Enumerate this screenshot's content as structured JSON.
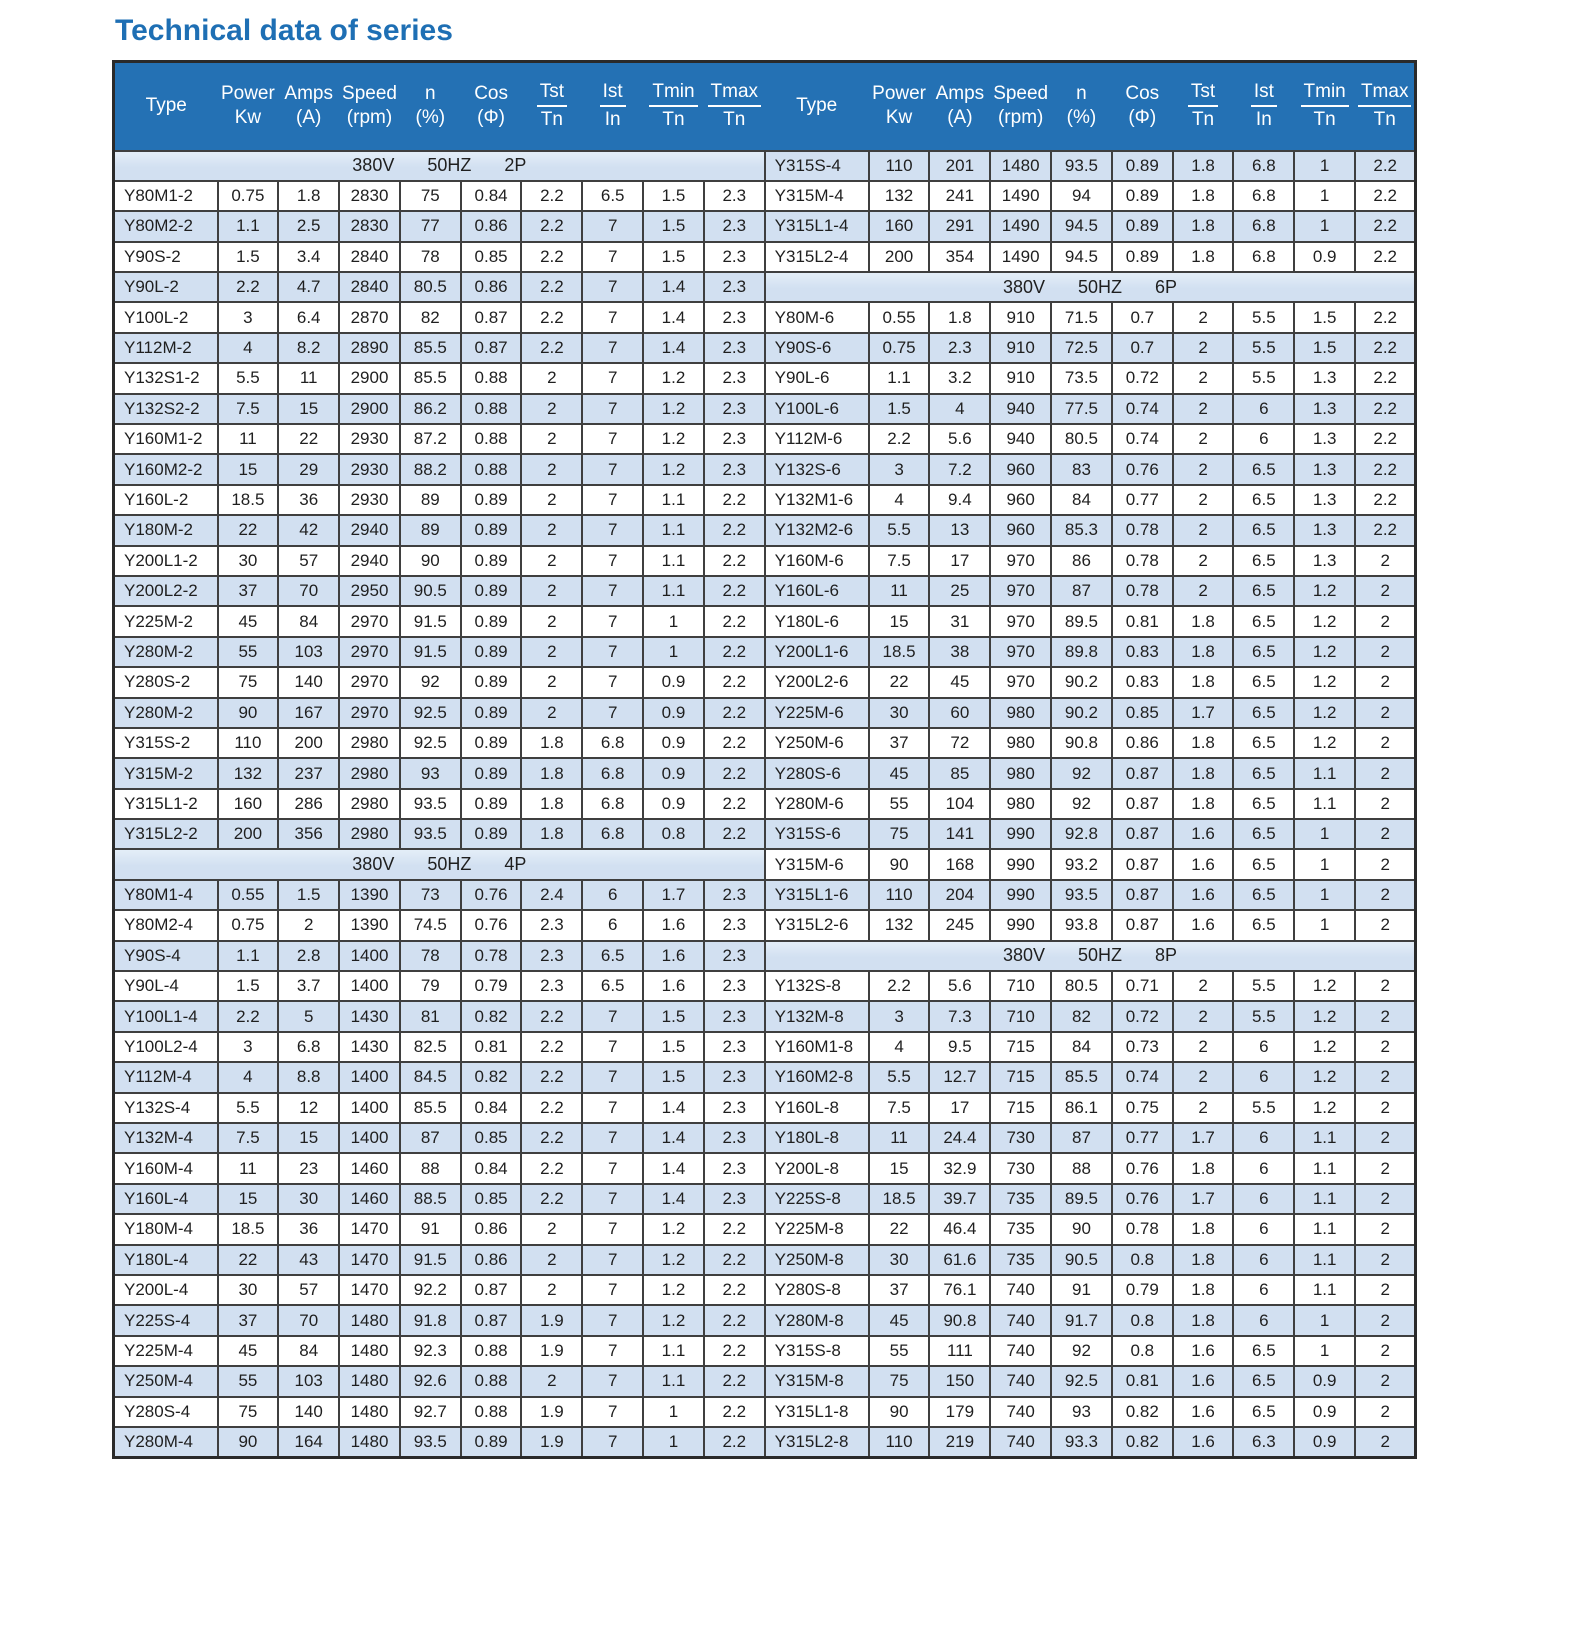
{
  "title": "Technical data of series",
  "colors": {
    "header_bg": "#2471b4",
    "header_text": "#ffffff",
    "row_highlight": "#d2e0f1",
    "title_color": "#1e6fb4",
    "border_color": "#3f3f3f"
  },
  "columns": [
    {
      "type": "single",
      "label": "Type"
    },
    {
      "type": "stacked",
      "top": "Power",
      "bottom": "Kw"
    },
    {
      "type": "stacked",
      "top": "Amps",
      "bottom": "(A)"
    },
    {
      "type": "stacked",
      "top": "Speed",
      "bottom": "(rpm)"
    },
    {
      "type": "stacked",
      "top": "n",
      "bottom": "(%)"
    },
    {
      "type": "stacked",
      "top": "Cos",
      "bottom": "(Φ)"
    },
    {
      "type": "fraction",
      "top": "Tst",
      "bottom": "Tn"
    },
    {
      "type": "fraction",
      "top": "Ist",
      "bottom": "In"
    },
    {
      "type": "fraction",
      "top": "Tmin",
      "bottom": "Tn"
    },
    {
      "type": "fraction",
      "top": "Tmax",
      "bottom": "Tn"
    }
  ],
  "rows_left": [
    {
      "section": "380V 50HZ 2P"
    },
    [
      "Y80M1-2",
      "0.75",
      "1.8",
      "2830",
      "75",
      "0.84",
      "2.2",
      "6.5",
      "1.5",
      "2.3"
    ],
    [
      "Y80M2-2",
      "1.1",
      "2.5",
      "2830",
      "77",
      "0.86",
      "2.2",
      "7",
      "1.5",
      "2.3"
    ],
    [
      "Y90S-2",
      "1.5",
      "3.4",
      "2840",
      "78",
      "0.85",
      "2.2",
      "7",
      "1.5",
      "2.3"
    ],
    [
      "Y90L-2",
      "2.2",
      "4.7",
      "2840",
      "80.5",
      "0.86",
      "2.2",
      "7",
      "1.4",
      "2.3"
    ],
    [
      "Y100L-2",
      "3",
      "6.4",
      "2870",
      "82",
      "0.87",
      "2.2",
      "7",
      "1.4",
      "2.3"
    ],
    [
      "Y112M-2",
      "4",
      "8.2",
      "2890",
      "85.5",
      "0.87",
      "2.2",
      "7",
      "1.4",
      "2.3"
    ],
    [
      "Y132S1-2",
      "5.5",
      "11",
      "2900",
      "85.5",
      "0.88",
      "2",
      "7",
      "1.2",
      "2.3"
    ],
    [
      "Y132S2-2",
      "7.5",
      "15",
      "2900",
      "86.2",
      "0.88",
      "2",
      "7",
      "1.2",
      "2.3"
    ],
    [
      "Y160M1-2",
      "11",
      "22",
      "2930",
      "87.2",
      "0.88",
      "2",
      "7",
      "1.2",
      "2.3"
    ],
    [
      "Y160M2-2",
      "15",
      "29",
      "2930",
      "88.2",
      "0.88",
      "2",
      "7",
      "1.2",
      "2.3"
    ],
    [
      "Y160L-2",
      "18.5",
      "36",
      "2930",
      "89",
      "0.89",
      "2",
      "7",
      "1.1",
      "2.2"
    ],
    [
      "Y180M-2",
      "22",
      "42",
      "2940",
      "89",
      "0.89",
      "2",
      "7",
      "1.1",
      "2.2"
    ],
    [
      "Y200L1-2",
      "30",
      "57",
      "2940",
      "90",
      "0.89",
      "2",
      "7",
      "1.1",
      "2.2"
    ],
    [
      "Y200L2-2",
      "37",
      "70",
      "2950",
      "90.5",
      "0.89",
      "2",
      "7",
      "1.1",
      "2.2"
    ],
    [
      "Y225M-2",
      "45",
      "84",
      "2970",
      "91.5",
      "0.89",
      "2",
      "7",
      "1",
      "2.2"
    ],
    [
      "Y280M-2",
      "55",
      "103",
      "2970",
      "91.5",
      "0.89",
      "2",
      "7",
      "1",
      "2.2"
    ],
    [
      "Y280S-2",
      "75",
      "140",
      "2970",
      "92",
      "0.89",
      "2",
      "7",
      "0.9",
      "2.2"
    ],
    [
      "Y280M-2",
      "90",
      "167",
      "2970",
      "92.5",
      "0.89",
      "2",
      "7",
      "0.9",
      "2.2"
    ],
    [
      "Y315S-2",
      "110",
      "200",
      "2980",
      "92.5",
      "0.89",
      "1.8",
      "6.8",
      "0.9",
      "2.2"
    ],
    [
      "Y315M-2",
      "132",
      "237",
      "2980",
      "93",
      "0.89",
      "1.8",
      "6.8",
      "0.9",
      "2.2"
    ],
    [
      "Y315L1-2",
      "160",
      "286",
      "2980",
      "93.5",
      "0.89",
      "1.8",
      "6.8",
      "0.9",
      "2.2"
    ],
    [
      "Y315L2-2",
      "200",
      "356",
      "2980",
      "93.5",
      "0.89",
      "1.8",
      "6.8",
      "0.8",
      "2.2"
    ],
    {
      "section": "380V 50HZ 4P"
    },
    [
      "Y80M1-4",
      "0.55",
      "1.5",
      "1390",
      "73",
      "0.76",
      "2.4",
      "6",
      "1.7",
      "2.3"
    ],
    [
      "Y80M2-4",
      "0.75",
      "2",
      "1390",
      "74.5",
      "0.76",
      "2.3",
      "6",
      "1.6",
      "2.3"
    ],
    [
      "Y90S-4",
      "1.1",
      "2.8",
      "1400",
      "78",
      "0.78",
      "2.3",
      "6.5",
      "1.6",
      "2.3"
    ],
    [
      "Y90L-4",
      "1.5",
      "3.7",
      "1400",
      "79",
      "0.79",
      "2.3",
      "6.5",
      "1.6",
      "2.3"
    ],
    [
      "Y100L1-4",
      "2.2",
      "5",
      "1430",
      "81",
      "0.82",
      "2.2",
      "7",
      "1.5",
      "2.3"
    ],
    [
      "Y100L2-4",
      "3",
      "6.8",
      "1430",
      "82.5",
      "0.81",
      "2.2",
      "7",
      "1.5",
      "2.3"
    ],
    [
      "Y112M-4",
      "4",
      "8.8",
      "1400",
      "84.5",
      "0.82",
      "2.2",
      "7",
      "1.5",
      "2.3"
    ],
    [
      "Y132S-4",
      "5.5",
      "12",
      "1400",
      "85.5",
      "0.84",
      "2.2",
      "7",
      "1.4",
      "2.3"
    ],
    [
      "Y132M-4",
      "7.5",
      "15",
      "1400",
      "87",
      "0.85",
      "2.2",
      "7",
      "1.4",
      "2.3"
    ],
    [
      "Y160M-4",
      "11",
      "23",
      "1460",
      "88",
      "0.84",
      "2.2",
      "7",
      "1.4",
      "2.3"
    ],
    [
      "Y160L-4",
      "15",
      "30",
      "1460",
      "88.5",
      "0.85",
      "2.2",
      "7",
      "1.4",
      "2.3"
    ],
    [
      "Y180M-4",
      "18.5",
      "36",
      "1470",
      "91",
      "0.86",
      "2",
      "7",
      "1.2",
      "2.2"
    ],
    [
      "Y180L-4",
      "22",
      "43",
      "1470",
      "91.5",
      "0.86",
      "2",
      "7",
      "1.2",
      "2.2"
    ],
    [
      "Y200L-4",
      "30",
      "57",
      "1470",
      "92.2",
      "0.87",
      "2",
      "7",
      "1.2",
      "2.2"
    ],
    [
      "Y225S-4",
      "37",
      "70",
      "1480",
      "91.8",
      "0.87",
      "1.9",
      "7",
      "1.2",
      "2.2"
    ],
    [
      "Y225M-4",
      "45",
      "84",
      "1480",
      "92.3",
      "0.88",
      "1.9",
      "7",
      "1.1",
      "2.2"
    ],
    [
      "Y250M-4",
      "55",
      "103",
      "1480",
      "92.6",
      "0.88",
      "2",
      "7",
      "1.1",
      "2.2"
    ],
    [
      "Y280S-4",
      "75",
      "140",
      "1480",
      "92.7",
      "0.88",
      "1.9",
      "7",
      "1",
      "2.2"
    ],
    [
      "Y280M-4",
      "90",
      "164",
      "1480",
      "93.5",
      "0.89",
      "1.9",
      "7",
      "1",
      "2.2"
    ]
  ],
  "rows_right": [
    [
      "Y315S-4",
      "110",
      "201",
      "1480",
      "93.5",
      "0.89",
      "1.8",
      "6.8",
      "1",
      "2.2"
    ],
    [
      "Y315M-4",
      "132",
      "241",
      "1490",
      "94",
      "0.89",
      "1.8",
      "6.8",
      "1",
      "2.2"
    ],
    [
      "Y315L1-4",
      "160",
      "291",
      "1490",
      "94.5",
      "0.89",
      "1.8",
      "6.8",
      "1",
      "2.2"
    ],
    [
      "Y315L2-4",
      "200",
      "354",
      "1490",
      "94.5",
      "0.89",
      "1.8",
      "6.8",
      "0.9",
      "2.2"
    ],
    {
      "section": "380V 50HZ 6P"
    },
    [
      "Y80M-6",
      "0.55",
      "1.8",
      "910",
      "71.5",
      "0.7",
      "2",
      "5.5",
      "1.5",
      "2.2"
    ],
    [
      "Y90S-6",
      "0.75",
      "2.3",
      "910",
      "72.5",
      "0.7",
      "2",
      "5.5",
      "1.5",
      "2.2"
    ],
    [
      "Y90L-6",
      "1.1",
      "3.2",
      "910",
      "73.5",
      "0.72",
      "2",
      "5.5",
      "1.3",
      "2.2"
    ],
    [
      "Y100L-6",
      "1.5",
      "4",
      "940",
      "77.5",
      "0.74",
      "2",
      "6",
      "1.3",
      "2.2"
    ],
    [
      "Y112M-6",
      "2.2",
      "5.6",
      "940",
      "80.5",
      "0.74",
      "2",
      "6",
      "1.3",
      "2.2"
    ],
    [
      "Y132S-6",
      "3",
      "7.2",
      "960",
      "83",
      "0.76",
      "2",
      "6.5",
      "1.3",
      "2.2"
    ],
    [
      "Y132M1-6",
      "4",
      "9.4",
      "960",
      "84",
      "0.77",
      "2",
      "6.5",
      "1.3",
      "2.2"
    ],
    [
      "Y132M2-6",
      "5.5",
      "13",
      "960",
      "85.3",
      "0.78",
      "2",
      "6.5",
      "1.3",
      "2.2"
    ],
    [
      "Y160M-6",
      "7.5",
      "17",
      "970",
      "86",
      "0.78",
      "2",
      "6.5",
      "1.3",
      "2"
    ],
    [
      "Y160L-6",
      "11",
      "25",
      "970",
      "87",
      "0.78",
      "2",
      "6.5",
      "1.2",
      "2"
    ],
    [
      "Y180L-6",
      "15",
      "31",
      "970",
      "89.5",
      "0.81",
      "1.8",
      "6.5",
      "1.2",
      "2"
    ],
    [
      "Y200L1-6",
      "18.5",
      "38",
      "970",
      "89.8",
      "0.83",
      "1.8",
      "6.5",
      "1.2",
      "2"
    ],
    [
      "Y200L2-6",
      "22",
      "45",
      "970",
      "90.2",
      "0.83",
      "1.8",
      "6.5",
      "1.2",
      "2"
    ],
    [
      "Y225M-6",
      "30",
      "60",
      "980",
      "90.2",
      "0.85",
      "1.7",
      "6.5",
      "1.2",
      "2"
    ],
    [
      "Y250M-6",
      "37",
      "72",
      "980",
      "90.8",
      "0.86",
      "1.8",
      "6.5",
      "1.2",
      "2"
    ],
    [
      "Y280S-6",
      "45",
      "85",
      "980",
      "92",
      "0.87",
      "1.8",
      "6.5",
      "1.1",
      "2"
    ],
    [
      "Y280M-6",
      "55",
      "104",
      "980",
      "92",
      "0.87",
      "1.8",
      "6.5",
      "1.1",
      "2"
    ],
    [
      "Y315S-6",
      "75",
      "141",
      "990",
      "92.8",
      "0.87",
      "1.6",
      "6.5",
      "1",
      "2"
    ],
    [
      "Y315M-6",
      "90",
      "168",
      "990",
      "93.2",
      "0.87",
      "1.6",
      "6.5",
      "1",
      "2"
    ],
    [
      "Y315L1-6",
      "110",
      "204",
      "990",
      "93.5",
      "0.87",
      "1.6",
      "6.5",
      "1",
      "2"
    ],
    [
      "Y315L2-6",
      "132",
      "245",
      "990",
      "93.8",
      "0.87",
      "1.6",
      "6.5",
      "1",
      "2"
    ],
    {
      "section": "380V 50HZ 8P"
    },
    [
      "Y132S-8",
      "2.2",
      "5.6",
      "710",
      "80.5",
      "0.71",
      "2",
      "5.5",
      "1.2",
      "2"
    ],
    [
      "Y132M-8",
      "3",
      "7.3",
      "710",
      "82",
      "0.72",
      "2",
      "5.5",
      "1.2",
      "2"
    ],
    [
      "Y160M1-8",
      "4",
      "9.5",
      "715",
      "84",
      "0.73",
      "2",
      "6",
      "1.2",
      "2"
    ],
    [
      "Y160M2-8",
      "5.5",
      "12.7",
      "715",
      "85.5",
      "0.74",
      "2",
      "6",
      "1.2",
      "2"
    ],
    [
      "Y160L-8",
      "7.5",
      "17",
      "715",
      "86.1",
      "0.75",
      "2",
      "5.5",
      "1.2",
      "2"
    ],
    [
      "Y180L-8",
      "11",
      "24.4",
      "730",
      "87",
      "0.77",
      "1.7",
      "6",
      "1.1",
      "2"
    ],
    [
      "Y200L-8",
      "15",
      "32.9",
      "730",
      "88",
      "0.76",
      "1.8",
      "6",
      "1.1",
      "2"
    ],
    [
      "Y225S-8",
      "18.5",
      "39.7",
      "735",
      "89.5",
      "0.76",
      "1.7",
      "6",
      "1.1",
      "2"
    ],
    [
      "Y225M-8",
      "22",
      "46.4",
      "735",
      "90",
      "0.78",
      "1.8",
      "6",
      "1.1",
      "2"
    ],
    [
      "Y250M-8",
      "30",
      "61.6",
      "735",
      "90.5",
      "0.8",
      "1.8",
      "6",
      "1.1",
      "2"
    ],
    [
      "Y280S-8",
      "37",
      "76.1",
      "740",
      "91",
      "0.79",
      "1.8",
      "6",
      "1.1",
      "2"
    ],
    [
      "Y280M-8",
      "45",
      "90.8",
      "740",
      "91.7",
      "0.8",
      "1.8",
      "6",
      "1",
      "2"
    ],
    [
      "Y315S-8",
      "55",
      "111",
      "740",
      "92",
      "0.8",
      "1.6",
      "6.5",
      "1",
      "2"
    ],
    [
      "Y315M-8",
      "75",
      "150",
      "740",
      "92.5",
      "0.81",
      "1.6",
      "6.5",
      "0.9",
      "2"
    ],
    [
      "Y315L1-8",
      "90",
      "179",
      "740",
      "93",
      "0.82",
      "1.6",
      "6.5",
      "0.9",
      "2"
    ],
    [
      "Y315L2-8",
      "110",
      "219",
      "740",
      "93.3",
      "0.82",
      "1.6",
      "6.3",
      "0.9",
      "2"
    ]
  ]
}
